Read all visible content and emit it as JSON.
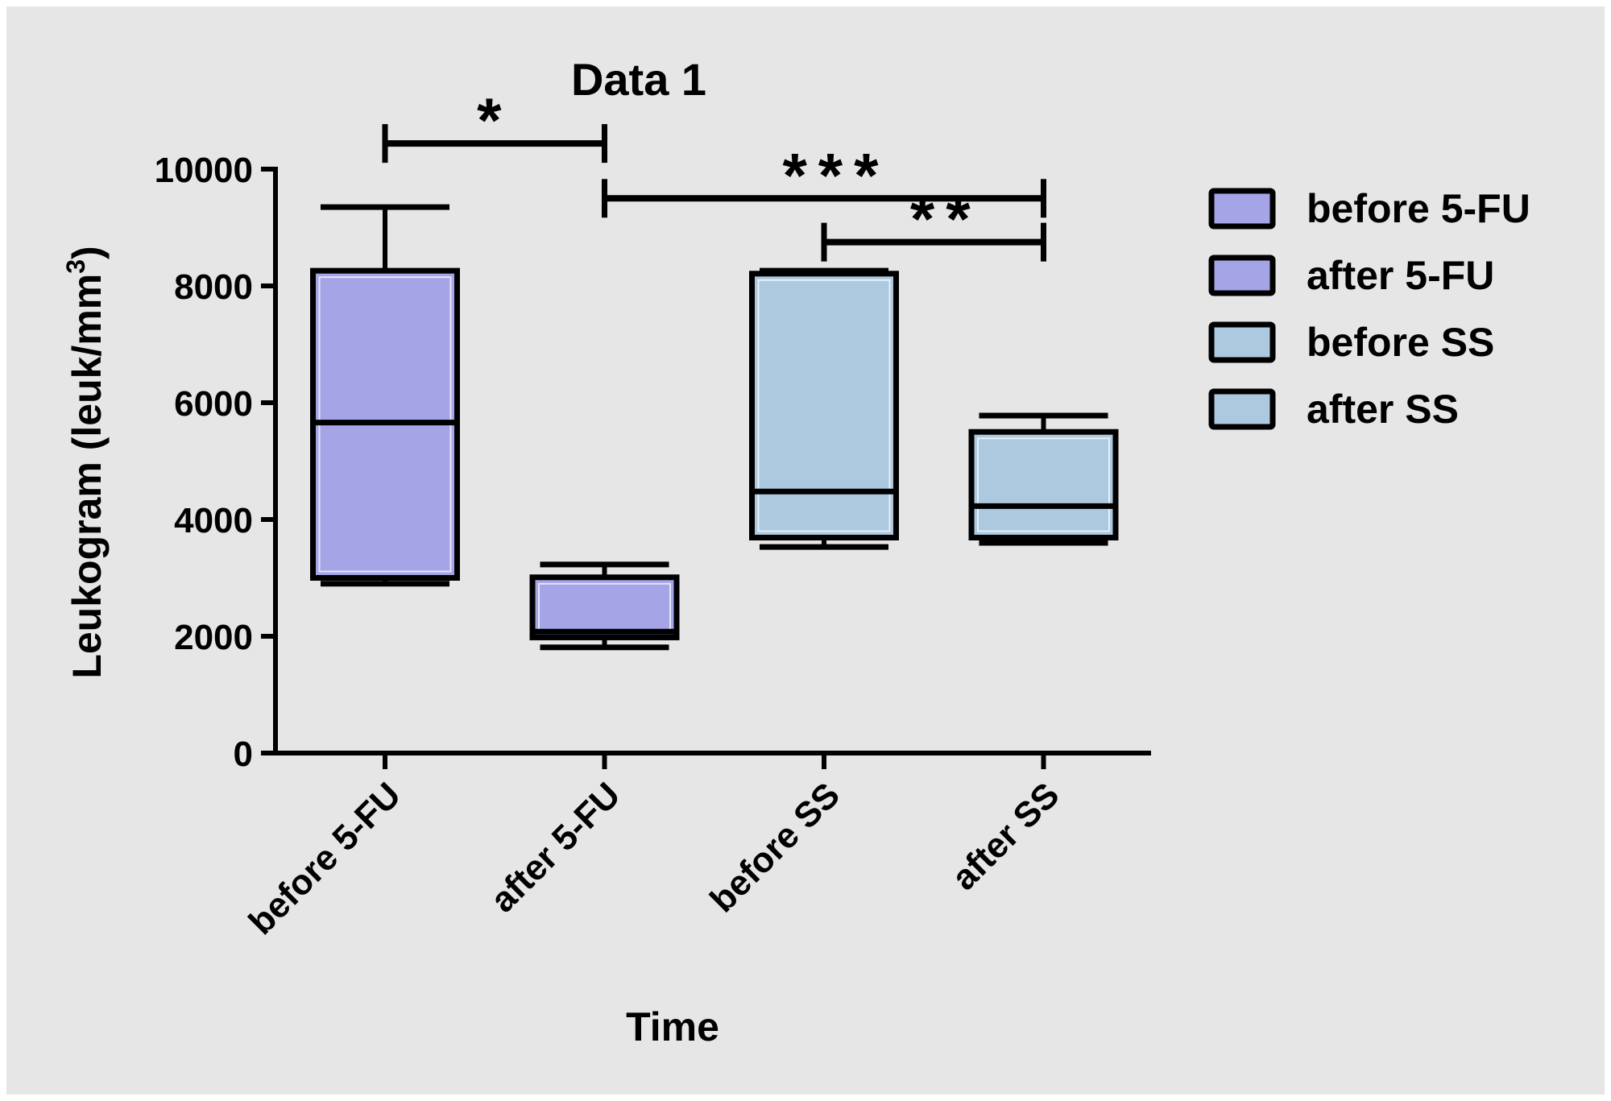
{
  "chart_data": {
    "type": "box",
    "title": "Data 1",
    "xlabel": "Time",
    "ylabel": "Leukogram (leuk/mm",
    "ylabel_superscript": "3",
    "ylabel_close": ")",
    "ylim": [
      0,
      10000
    ],
    "yticks": [
      0,
      2000,
      4000,
      6000,
      8000,
      10000
    ],
    "ytick_labels": [
      "0",
      "2000",
      "4000",
      "6000",
      "8000",
      "10000"
    ],
    "grid": false,
    "legend_position": "right",
    "categories": [
      "before 5-FU",
      "after 5-FU",
      "before SS",
      "after SS"
    ],
    "series": [
      {
        "name": "before 5-FU",
        "color": "#a4a4e6",
        "min": 2900,
        "q1": 3000,
        "median": 5660,
        "q3": 8260,
        "max": 9350
      },
      {
        "name": "after 5-FU",
        "color": "#a4a4e6",
        "min": 1810,
        "q1": 1980,
        "median": 2080,
        "q3": 3010,
        "max": 3230
      },
      {
        "name": "before SS",
        "color": "#adc9e0",
        "min": 3530,
        "q1": 3690,
        "median": 4480,
        "q3": 8210,
        "max": 8260
      },
      {
        "name": "after SS",
        "color": "#adc9e0",
        "min": 3600,
        "q1": 3690,
        "median": 4230,
        "q3": 5500,
        "max": 5780
      }
    ],
    "significance": [
      {
        "from": 0,
        "to": 1,
        "label": "*",
        "y": 10440
      },
      {
        "from": 1,
        "to": 3,
        "label": "***",
        "y": 9500
      },
      {
        "from": 2,
        "to": 3,
        "label": "**",
        "y": 8750
      }
    ]
  }
}
